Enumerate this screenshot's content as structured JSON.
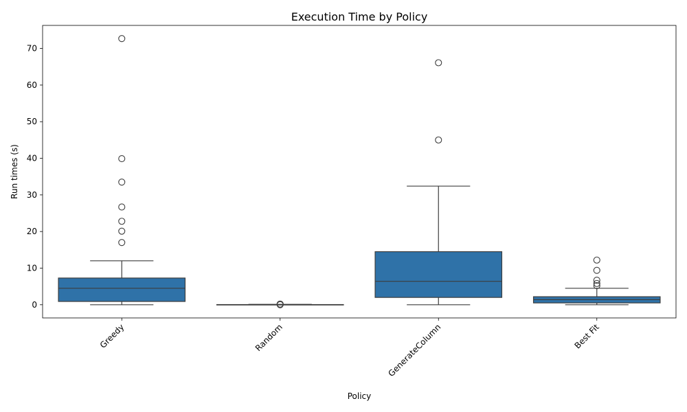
{
  "chart_data": {
    "type": "box",
    "title": "Execution Time by Policy",
    "xlabel": "Policy",
    "ylabel": "Run times (s)",
    "ylim": [
      -3.6,
      76.3
    ],
    "yticks": [
      0,
      10,
      20,
      30,
      40,
      50,
      60,
      70
    ],
    "grid": false,
    "box_color": "#2f72a8",
    "line_color": "#3d3d3d",
    "categories": [
      "Greedy",
      "Random",
      "GenerateColumn",
      "Best Fit"
    ],
    "boxes": [
      {
        "category": "Greedy",
        "whisker_low": 0,
        "q1": 0.9,
        "median": 4.5,
        "q3": 7.3,
        "whisker_high": 12.0,
        "outliers": [
          72.7,
          39.9,
          33.5,
          26.7,
          22.8,
          20.1,
          17.0
        ]
      },
      {
        "category": "Random",
        "whisker_low": 0,
        "q1": 0,
        "median": 0,
        "q3": 0.05,
        "whisker_high": 0.1,
        "outliers": [
          0.2,
          0.0
        ]
      },
      {
        "category": "GenerateColumn",
        "whisker_low": 0,
        "q1": 2.0,
        "median": 6.4,
        "q3": 14.5,
        "whisker_high": 32.4,
        "outliers": [
          66.1,
          45.0
        ]
      },
      {
        "category": "Best Fit",
        "whisker_low": 0,
        "q1": 0.5,
        "median": 1.4,
        "q3": 2.2,
        "whisker_high": 4.5,
        "outliers": [
          12.2,
          9.4,
          6.7,
          5.8,
          5.2
        ]
      }
    ]
  }
}
